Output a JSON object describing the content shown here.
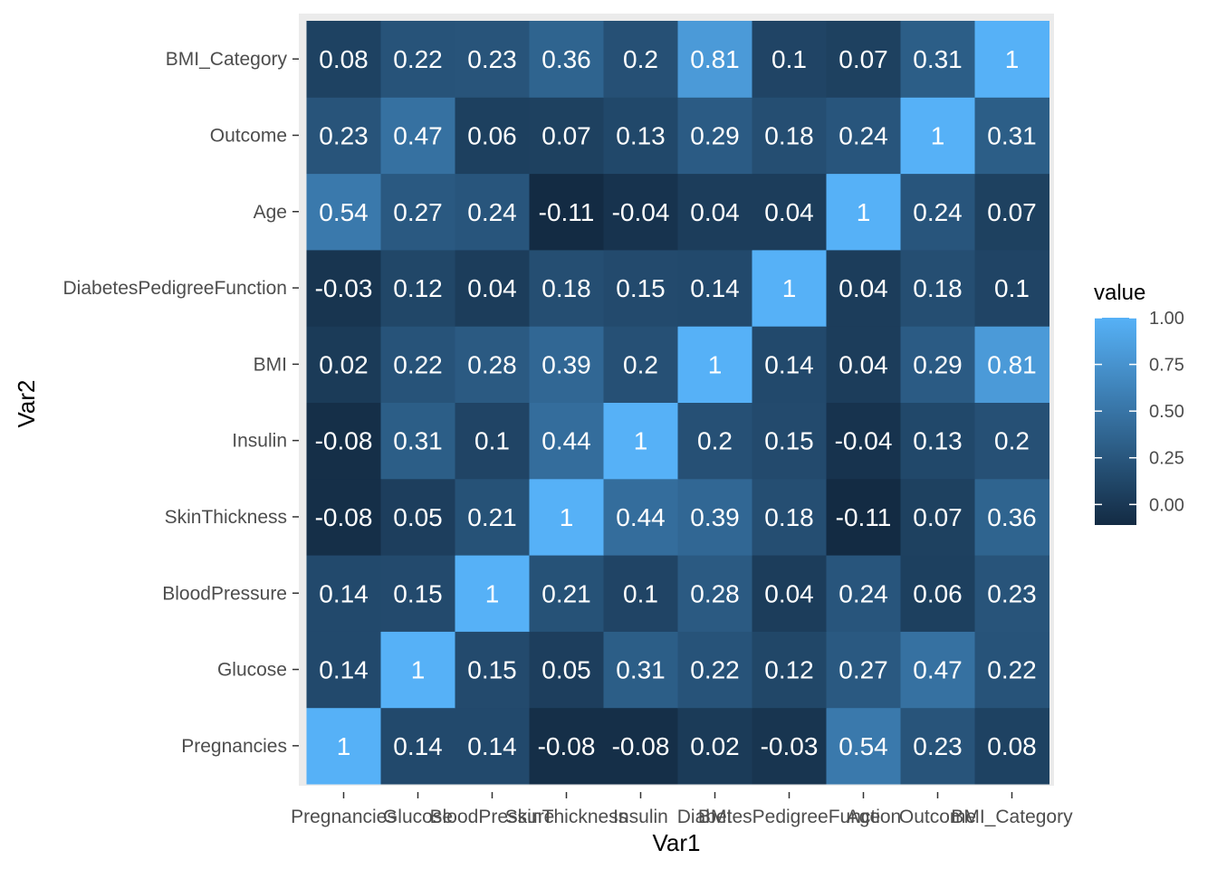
{
  "chart_data": {
    "type": "heatmap",
    "xlabel": "Var1",
    "ylabel": "Var2",
    "x_categories": [
      "Pregnancies",
      "Glucose",
      "BloodPressure",
      "SkinThickness",
      "Insulin",
      "BMI",
      "DiabetesPedigreeFunction",
      "Age",
      "Outcome",
      "BMI_Category"
    ],
    "y_categories": [
      "Pregnancies",
      "Glucose",
      "BloodPressure",
      "SkinThickness",
      "Insulin",
      "BMI",
      "DiabetesPedigreeFunction",
      "Age",
      "Outcome",
      "BMI_Category"
    ],
    "values": [
      [
        1,
        0.14,
        0.14,
        -0.08,
        -0.08,
        0.02,
        -0.03,
        0.54,
        0.23,
        0.08
      ],
      [
        0.14,
        1,
        0.15,
        0.05,
        0.31,
        0.22,
        0.12,
        0.27,
        0.47,
        0.22
      ],
      [
        0.14,
        0.15,
        1,
        0.21,
        0.1,
        0.28,
        0.04,
        0.24,
        0.06,
        0.23
      ],
      [
        -0.08,
        0.05,
        0.21,
        1,
        0.44,
        0.39,
        0.18,
        -0.11,
        0.07,
        0.36
      ],
      [
        -0.08,
        0.31,
        0.1,
        0.44,
        1,
        0.2,
        0.15,
        -0.04,
        0.13,
        0.2
      ],
      [
        0.02,
        0.22,
        0.28,
        0.39,
        0.2,
        1,
        0.14,
        0.04,
        0.29,
        0.81
      ],
      [
        -0.03,
        0.12,
        0.04,
        0.18,
        0.15,
        0.14,
        1,
        0.04,
        0.18,
        0.1
      ],
      [
        0.54,
        0.27,
        0.24,
        -0.11,
        -0.04,
        0.04,
        0.04,
        1,
        0.24,
        0.07
      ],
      [
        0.23,
        0.47,
        0.06,
        0.07,
        0.13,
        0.29,
        0.18,
        0.24,
        1,
        0.31
      ],
      [
        0.08,
        0.22,
        0.23,
        0.36,
        0.2,
        0.81,
        0.1,
        0.07,
        0.31,
        1
      ]
    ],
    "value_range": [
      -0.11,
      1
    ],
    "color_low": "#132B43",
    "color_high": "#56B1F7",
    "panel_background": "#EBEBEB",
    "legend": {
      "title": "value",
      "position": "right",
      "ticks": [
        1.0,
        0.75,
        0.5,
        0.25,
        0.0
      ],
      "tick_labels": [
        "1.00",
        "0.75",
        "0.50",
        "0.25",
        "0.00"
      ]
    }
  }
}
